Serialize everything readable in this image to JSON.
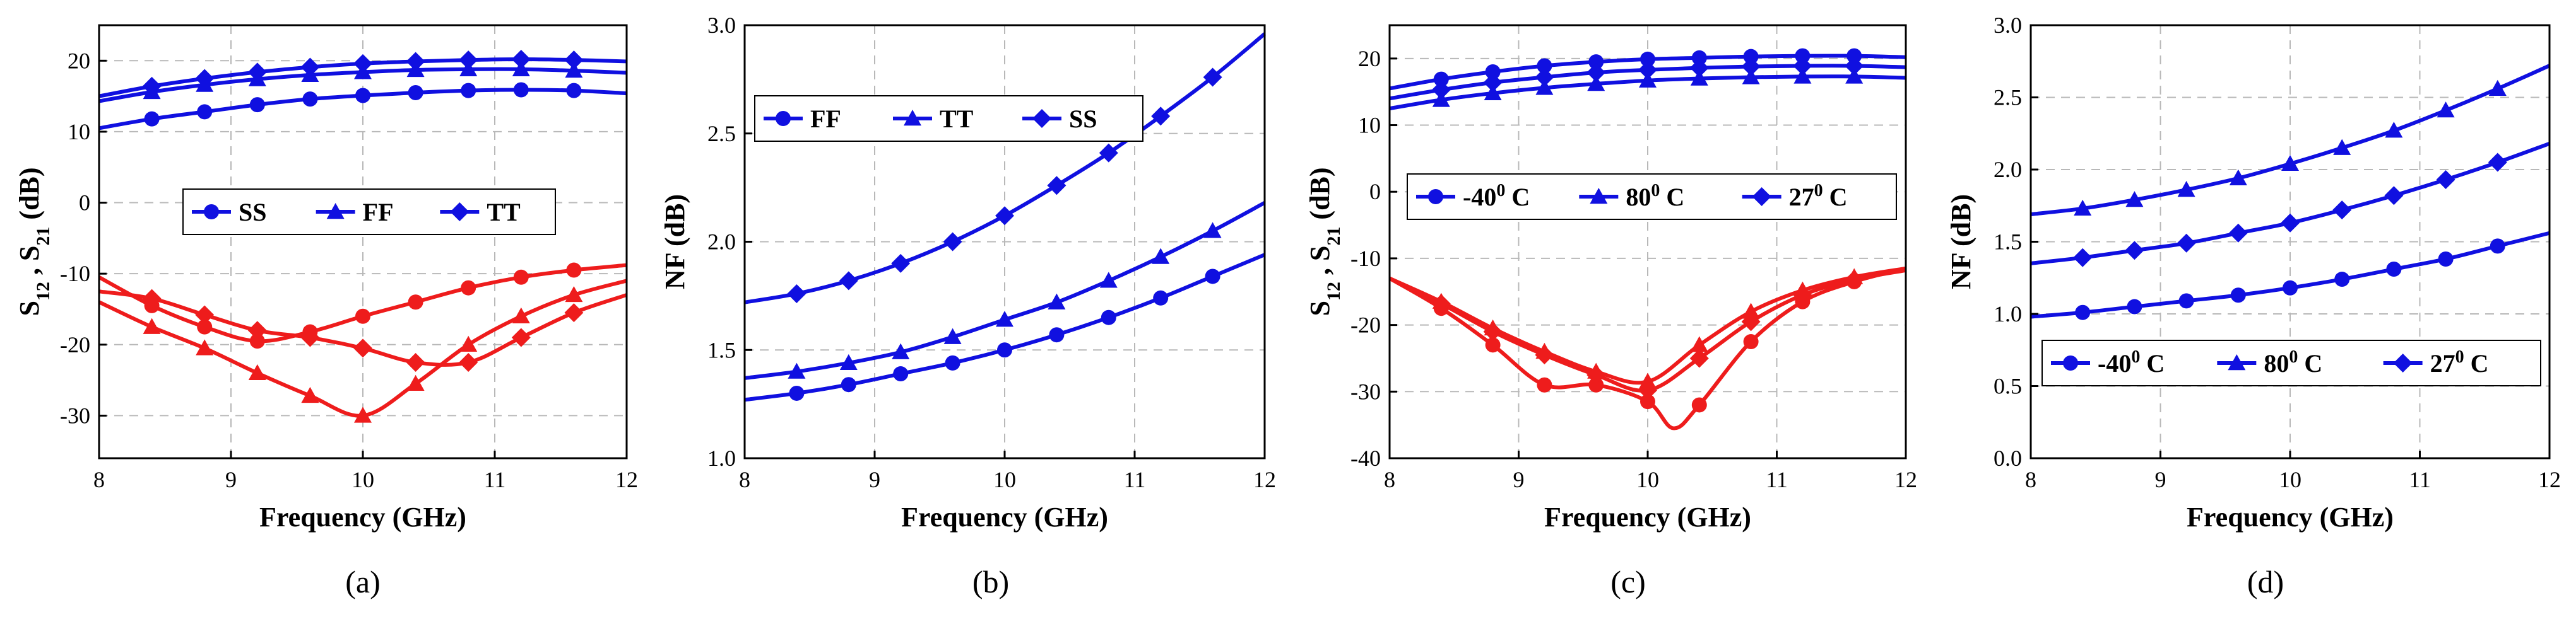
{
  "figure": {
    "subcaptions": [
      "(a)",
      "(b)",
      "(c)",
      "(d)"
    ]
  },
  "colors": {
    "blue": "#1010e0",
    "red": "#ee1c1c",
    "grid": "#b8b8b8"
  },
  "chart_data": [
    {
      "id": "a",
      "type": "line",
      "xlabel": "Frequency (GHz)",
      "ylabel_parts": [
        "S",
        "12",
        " , S",
        "21",
        " (dB)"
      ],
      "xlim": [
        8,
        12
      ],
      "ylim": [
        -36,
        25
      ],
      "xticks": [
        8,
        9,
        10,
        11,
        12
      ],
      "yticks": [
        -30,
        -20,
        -10,
        0,
        10,
        20
      ],
      "legend": {
        "position": "center",
        "entries": [
          {
            "label": "SS",
            "marker": "circle"
          },
          {
            "label": "FF",
            "marker": "triangle"
          },
          {
            "label": "TT",
            "marker": "diamond"
          }
        ]
      },
      "series": [
        {
          "name": "SS S21",
          "color": "blue",
          "marker": "circle",
          "x": [
            8,
            8.4,
            8.8,
            9.2,
            9.6,
            10,
            10.4,
            10.8,
            11.2,
            11.6,
            12
          ],
          "y": [
            10.5,
            11.8,
            12.8,
            13.8,
            14.6,
            15.1,
            15.5,
            15.8,
            15.9,
            15.8,
            15.4
          ]
        },
        {
          "name": "FF S21",
          "color": "blue",
          "marker": "triangle",
          "x": [
            8,
            8.4,
            8.8,
            9.2,
            9.6,
            10,
            10.4,
            10.8,
            11.2,
            11.6,
            12
          ],
          "y": [
            14.3,
            15.6,
            16.6,
            17.4,
            18,
            18.4,
            18.7,
            18.8,
            18.8,
            18.6,
            18.3
          ]
        },
        {
          "name": "TT S21",
          "color": "blue",
          "marker": "diamond",
          "x": [
            8,
            8.4,
            8.8,
            9.2,
            9.6,
            10,
            10.4,
            10.8,
            11.2,
            11.6,
            12
          ],
          "y": [
            15,
            16.4,
            17.5,
            18.4,
            19.1,
            19.6,
            19.9,
            20.1,
            20.2,
            20.1,
            19.9
          ]
        },
        {
          "name": "SS S12",
          "color": "red",
          "marker": "circle",
          "x": [
            8,
            8.4,
            8.8,
            9.2,
            9.6,
            10,
            10.4,
            10.8,
            11.2,
            11.6,
            12
          ],
          "y": [
            -10.5,
            -14.5,
            -17.5,
            -19.5,
            -18.2,
            -16,
            -14,
            -12,
            -10.5,
            -9.5,
            -8.8
          ]
        },
        {
          "name": "FF S12",
          "color": "red",
          "marker": "triangle",
          "x": [
            8,
            8.4,
            8.8,
            9.2,
            9.6,
            10,
            10.4,
            10.8,
            11.2,
            11.6,
            12
          ],
          "y": [
            -14,
            -17.5,
            -20.5,
            -24,
            -27.2,
            -30,
            -25.5,
            -20,
            -16,
            -13,
            -11
          ]
        },
        {
          "name": "TT S12",
          "color": "red",
          "marker": "diamond",
          "x": [
            8,
            8.4,
            8.8,
            9.2,
            9.6,
            10,
            10.4,
            10.8,
            11.2,
            11.6,
            12
          ],
          "y": [
            -12.5,
            -13.5,
            -15.8,
            -18,
            -19,
            -20.5,
            -22.5,
            -22.5,
            -19,
            -15.5,
            -13
          ]
        }
      ]
    },
    {
      "id": "b",
      "type": "line",
      "xlabel": "Frequency (GHz)",
      "ylabel_parts": [
        "NF (dB)"
      ],
      "xlim": [
        8,
        12
      ],
      "ylim": [
        1.0,
        3.0
      ],
      "xticks": [
        8,
        9,
        10,
        11,
        12
      ],
      "yticks": [
        1.0,
        1.5,
        2.0,
        2.5,
        3.0
      ],
      "ytick_decimals": 1,
      "legend": {
        "position": "top-left",
        "entries": [
          {
            "label": "FF",
            "marker": "circle"
          },
          {
            "label": "TT",
            "marker": "triangle"
          },
          {
            "label": "SS",
            "marker": "diamond"
          }
        ]
      },
      "series": [
        {
          "name": "FF",
          "color": "blue",
          "marker": "circle",
          "x": [
            8,
            8.4,
            8.8,
            9.2,
            9.6,
            10,
            10.4,
            10.8,
            11.2,
            11.6,
            12
          ],
          "y": [
            1.27,
            1.3,
            1.34,
            1.39,
            1.44,
            1.5,
            1.57,
            1.65,
            1.74,
            1.84,
            1.94
          ]
        },
        {
          "name": "TT",
          "color": "blue",
          "marker": "triangle",
          "x": [
            8,
            8.4,
            8.8,
            9.2,
            9.6,
            10,
            10.4,
            10.8,
            11.2,
            11.6,
            12
          ],
          "y": [
            1.37,
            1.4,
            1.44,
            1.49,
            1.56,
            1.64,
            1.72,
            1.82,
            1.93,
            2.05,
            2.18
          ]
        },
        {
          "name": "SS",
          "color": "blue",
          "marker": "diamond",
          "x": [
            8,
            8.4,
            8.8,
            9.2,
            9.6,
            10,
            10.4,
            10.8,
            11.2,
            11.6,
            12
          ],
          "y": [
            1.72,
            1.76,
            1.82,
            1.9,
            2.0,
            2.12,
            2.26,
            2.41,
            2.58,
            2.76,
            2.96
          ]
        }
      ]
    },
    {
      "id": "c",
      "type": "line",
      "xlabel": "Frequency (GHz)",
      "ylabel_parts": [
        "S",
        "12",
        " , S",
        "21",
        " (dB)"
      ],
      "xlim": [
        8,
        12
      ],
      "ylim": [
        -40,
        25
      ],
      "xticks": [
        8,
        9,
        10,
        11,
        12
      ],
      "yticks": [
        -40,
        -30,
        -20,
        -10,
        0,
        10,
        20
      ],
      "legend": {
        "position": "center-right",
        "entries": [
          {
            "label": "-40",
            "sup": "0",
            "unit": " C",
            "marker": "circle"
          },
          {
            "label": "80",
            "sup": "0",
            "unit": " C",
            "marker": "triangle"
          },
          {
            "label": "27",
            "sup": "0",
            "unit": " C",
            "marker": "diamond"
          }
        ]
      },
      "series": [
        {
          "name": "-40 C S21",
          "color": "blue",
          "marker": "circle",
          "x": [
            8,
            8.4,
            8.8,
            9.2,
            9.6,
            10,
            10.4,
            10.8,
            11.2,
            11.6,
            12
          ],
          "y": [
            15.5,
            16.9,
            18,
            18.9,
            19.5,
            19.9,
            20.1,
            20.3,
            20.4,
            20.4,
            20.2
          ]
        },
        {
          "name": "80 C S21",
          "color": "blue",
          "marker": "triangle",
          "x": [
            8,
            8.4,
            8.8,
            9.2,
            9.6,
            10,
            10.4,
            10.8,
            11.2,
            11.6,
            12
          ],
          "y": [
            12.5,
            13.8,
            14.8,
            15.6,
            16.2,
            16.7,
            17,
            17.2,
            17.3,
            17.3,
            17.1
          ]
        },
        {
          "name": "27 C S21",
          "color": "blue",
          "marker": "diamond",
          "x": [
            8,
            8.4,
            8.8,
            9.2,
            9.6,
            10,
            10.4,
            10.8,
            11.2,
            11.6,
            12
          ],
          "y": [
            14,
            15.3,
            16.4,
            17.2,
            17.9,
            18.3,
            18.6,
            18.8,
            18.9,
            18.9,
            18.7
          ]
        },
        {
          "name": "-40 C S12",
          "color": "red",
          "marker": "circle",
          "x": [
            8,
            8.4,
            8.8,
            9.2,
            9.6,
            10,
            10.2,
            10.4,
            10.8,
            11.2,
            11.6,
            12
          ],
          "y": [
            -13,
            -17.5,
            -23,
            -29,
            -29,
            -31.5,
            -35.5,
            -32,
            -22.5,
            -16.5,
            -13.5,
            -11.5
          ]
        },
        {
          "name": "80 C S12",
          "color": "red",
          "marker": "triangle",
          "x": [
            8,
            8.4,
            8.8,
            9.2,
            9.6,
            10,
            10.4,
            10.8,
            11.2,
            11.6,
            12
          ],
          "y": [
            -13,
            -16.5,
            -20.5,
            -24,
            -27,
            -28.5,
            -23,
            -18,
            -14.8,
            -12.8,
            -11.5
          ]
        },
        {
          "name": "27 C S12",
          "color": "red",
          "marker": "diamond",
          "x": [
            8,
            8.4,
            8.8,
            9.2,
            9.6,
            10,
            10.4,
            10.8,
            11.2,
            11.6,
            12
          ],
          "y": [
            -13,
            -16.8,
            -21,
            -24.5,
            -27.5,
            -29.8,
            -25,
            -19.5,
            -15.5,
            -13.2,
            -11.8
          ]
        }
      ]
    },
    {
      "id": "d",
      "type": "line",
      "xlabel": "Frequency (GHz)",
      "ylabel_parts": [
        "NF (dB)"
      ],
      "xlim": [
        8,
        12
      ],
      "ylim": [
        0.0,
        3.0
      ],
      "xticks": [
        8,
        9,
        10,
        11,
        12
      ],
      "yticks": [
        0.0,
        0.5,
        1.0,
        1.5,
        2.0,
        2.5,
        3.0
      ],
      "ytick_decimals": 1,
      "legend": {
        "position": "bottom-center",
        "entries": [
          {
            "label": "-40",
            "sup": "0",
            "unit": " C",
            "marker": "circle"
          },
          {
            "label": "80",
            "sup": "0",
            "unit": " C",
            "marker": "triangle"
          },
          {
            "label": "27",
            "sup": "0",
            "unit": " C",
            "marker": "diamond"
          }
        ]
      },
      "series": [
        {
          "name": "-40 C",
          "color": "blue",
          "marker": "circle",
          "x": [
            8,
            8.4,
            8.8,
            9.2,
            9.6,
            10,
            10.4,
            10.8,
            11.2,
            11.6,
            12
          ],
          "y": [
            0.98,
            1.01,
            1.05,
            1.09,
            1.13,
            1.18,
            1.24,
            1.31,
            1.38,
            1.47,
            1.56
          ]
        },
        {
          "name": "80 C",
          "color": "blue",
          "marker": "triangle",
          "x": [
            8,
            8.4,
            8.8,
            9.2,
            9.6,
            10,
            10.4,
            10.8,
            11.2,
            11.6,
            12
          ],
          "y": [
            1.69,
            1.73,
            1.79,
            1.86,
            1.94,
            2.04,
            2.15,
            2.27,
            2.41,
            2.56,
            2.72
          ]
        },
        {
          "name": "27 C",
          "color": "blue",
          "marker": "diamond",
          "x": [
            8,
            8.4,
            8.8,
            9.2,
            9.6,
            10,
            10.4,
            10.8,
            11.2,
            11.6,
            12
          ],
          "y": [
            1.35,
            1.39,
            1.44,
            1.49,
            1.56,
            1.63,
            1.72,
            1.82,
            1.93,
            2.05,
            2.18
          ]
        }
      ]
    }
  ]
}
